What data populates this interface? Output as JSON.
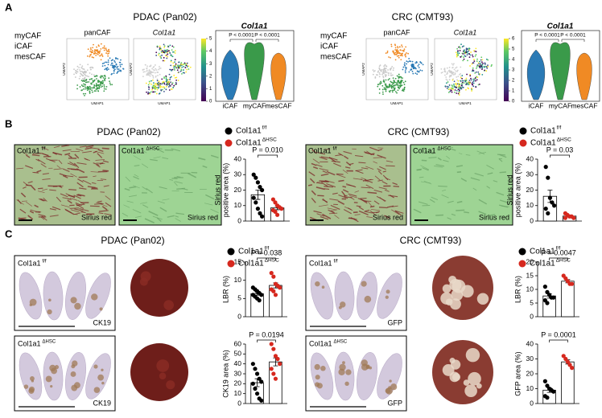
{
  "panel_a": {
    "label": "A",
    "left": {
      "title": "PDAC (Pan02)",
      "legend": [
        {
          "name": "myCAF",
          "color": "#3a9a4a"
        },
        {
          "name": "iCAF",
          "color": "#2a7ab5"
        },
        {
          "name": "mesCAF",
          "color": "#f08a24"
        }
      ],
      "umap_titles": [
        "panCAF",
        "Col1a1"
      ],
      "axis_x": "UMAP1",
      "axis_y": "UMAP2",
      "violin_title": "Col1a1",
      "colorbar_ticks": [
        0,
        1,
        2,
        3,
        4,
        5
      ],
      "pvalues": [
        "P < 0.0001",
        "P < 0.0001"
      ],
      "groups": [
        "iCAF",
        "myCAF",
        "mesCAF"
      ]
    },
    "right": {
      "title": "CRC (CMT93)",
      "legend": [
        {
          "name": "myCAF",
          "color": "#3a9a4a"
        },
        {
          "name": "iCAF",
          "color": "#2a7ab5"
        },
        {
          "name": "mesCAF",
          "color": "#f08a24"
        }
      ],
      "umap_titles": [
        "panCAF",
        "Col1a1"
      ],
      "axis_x": "UMAP1",
      "axis_y": "UMAP2",
      "violin_title": "Col1a1",
      "colorbar_ticks": [
        0,
        1,
        2,
        3,
        4,
        5,
        6
      ],
      "pvalues": [
        "P < 0.0001",
        "P < 0.0001"
      ],
      "groups": [
        "iCAF",
        "myCAF",
        "mesCAF"
      ]
    }
  },
  "panel_b": {
    "label": "B",
    "legend": [
      {
        "name": "Col1a1",
        "sup": "f/f",
        "color": "#000000"
      },
      {
        "name": "Col1a1",
        "sup": "ΔHSC",
        "color": "#d6281e"
      }
    ],
    "stain": "Sirius red",
    "left": {
      "title": "PDAC (Pan02)",
      "plot": {
        "ylabel": [
          "Sirius red",
          "positive area (%)"
        ],
        "ylim": [
          0,
          40
        ],
        "yticks": [
          0,
          10,
          20,
          30,
          40
        ],
        "pvalue": "P = 0.010",
        "groups": [
          {
            "values": [
              30,
              28,
              25,
              22,
              20,
              15,
              12,
              8,
              5,
              3
            ],
            "mean": 17,
            "sem": 3
          },
          {
            "values": [
              14,
              12,
              10,
              9,
              8,
              7,
              6,
              4
            ],
            "mean": 8.5,
            "sem": 1.2
          }
        ]
      }
    },
    "right": {
      "title": "CRC (CMT93)",
      "plot": {
        "ylabel": [
          "Sirius red",
          "positive area (%)"
        ],
        "ylim": [
          0,
          40
        ],
        "yticks": [
          0,
          10,
          20,
          30,
          40
        ],
        "pvalue": "P = 0.03",
        "groups": [
          {
            "values": [
              35,
              28,
              15,
              12,
              10,
              8,
              5
            ],
            "mean": 16,
            "sem": 4
          },
          {
            "values": [
              5,
              4,
              3,
              3,
              2,
              2
            ],
            "mean": 3.2,
            "sem": 0.6
          }
        ]
      }
    }
  },
  "panel_c": {
    "label": "C",
    "legend": [
      {
        "name": "Col1a1",
        "sup": "f/f",
        "color": "#000000"
      },
      {
        "name": "Col1a1",
        "sup": "ΔHSC",
        "color": "#d6281e"
      }
    ],
    "left": {
      "title": "PDAC (Pan02)",
      "stain": "CK19",
      "plots": [
        {
          "ylabel": [
            "LBR (%)"
          ],
          "ylim": [
            0,
            15
          ],
          "yticks": [
            0,
            5,
            10,
            15
          ],
          "pvalue": "P = 0.038",
          "groups": [
            {
              "values": [
                8,
                7.5,
                7,
                6.5,
                6,
                6,
                5.5,
                5,
                4.5
              ],
              "mean": 6.3,
              "sem": 0.4
            },
            {
              "values": [
                12,
                11,
                9,
                8.5,
                8,
                7.5,
                7,
                6
              ],
              "mean": 8.6,
              "sem": 0.7
            }
          ]
        },
        {
          "ylabel": [
            "CK19 area (%)"
          ],
          "ylim": [
            0,
            60
          ],
          "yticks": [
            0,
            10,
            20,
            30,
            40,
            50,
            60
          ],
          "pvalue": "P = 0.0194",
          "groups": [
            {
              "values": [
                40,
                35,
                30,
                25,
                22,
                20,
                15,
                10,
                5,
                3
              ],
              "mean": 21,
              "sem": 4
            },
            {
              "values": [
                60,
                55,
                48,
                45,
                40,
                35,
                30,
                25
              ],
              "mean": 42,
              "sem": 4
            }
          ]
        }
      ]
    },
    "right": {
      "title": "CRC (CMT93)",
      "stain": "GFP",
      "plots": [
        {
          "ylabel": [
            "LBR (%)"
          ],
          "ylim": [
            0,
            20
          ],
          "yticks": [
            0,
            5,
            10,
            15,
            20
          ],
          "pvalue": "P = 0.0047",
          "groups": [
            {
              "values": [
                11,
                9,
                8,
                7,
                7,
                6,
                5
              ],
              "mean": 7.6,
              "sem": 0.8
            },
            {
              "values": [
                15,
                14,
                13,
                12,
                12
              ],
              "mean": 13,
              "sem": 0.6
            }
          ]
        },
        {
          "ylabel": [
            "GFP area (%)"
          ],
          "ylim": [
            0,
            40
          ],
          "yticks": [
            0,
            10,
            20,
            30,
            40
          ],
          "pvalue": "P = 0.0001",
          "groups": [
            {
              "values": [
                15,
                12,
                10,
                9,
                8,
                5,
                4
              ],
              "mean": 9,
              "sem": 1.5
            },
            {
              "values": [
                32,
                30,
                28,
                26,
                24
              ],
              "mean": 28,
              "sem": 1.4
            }
          ]
        }
      ]
    }
  }
}
